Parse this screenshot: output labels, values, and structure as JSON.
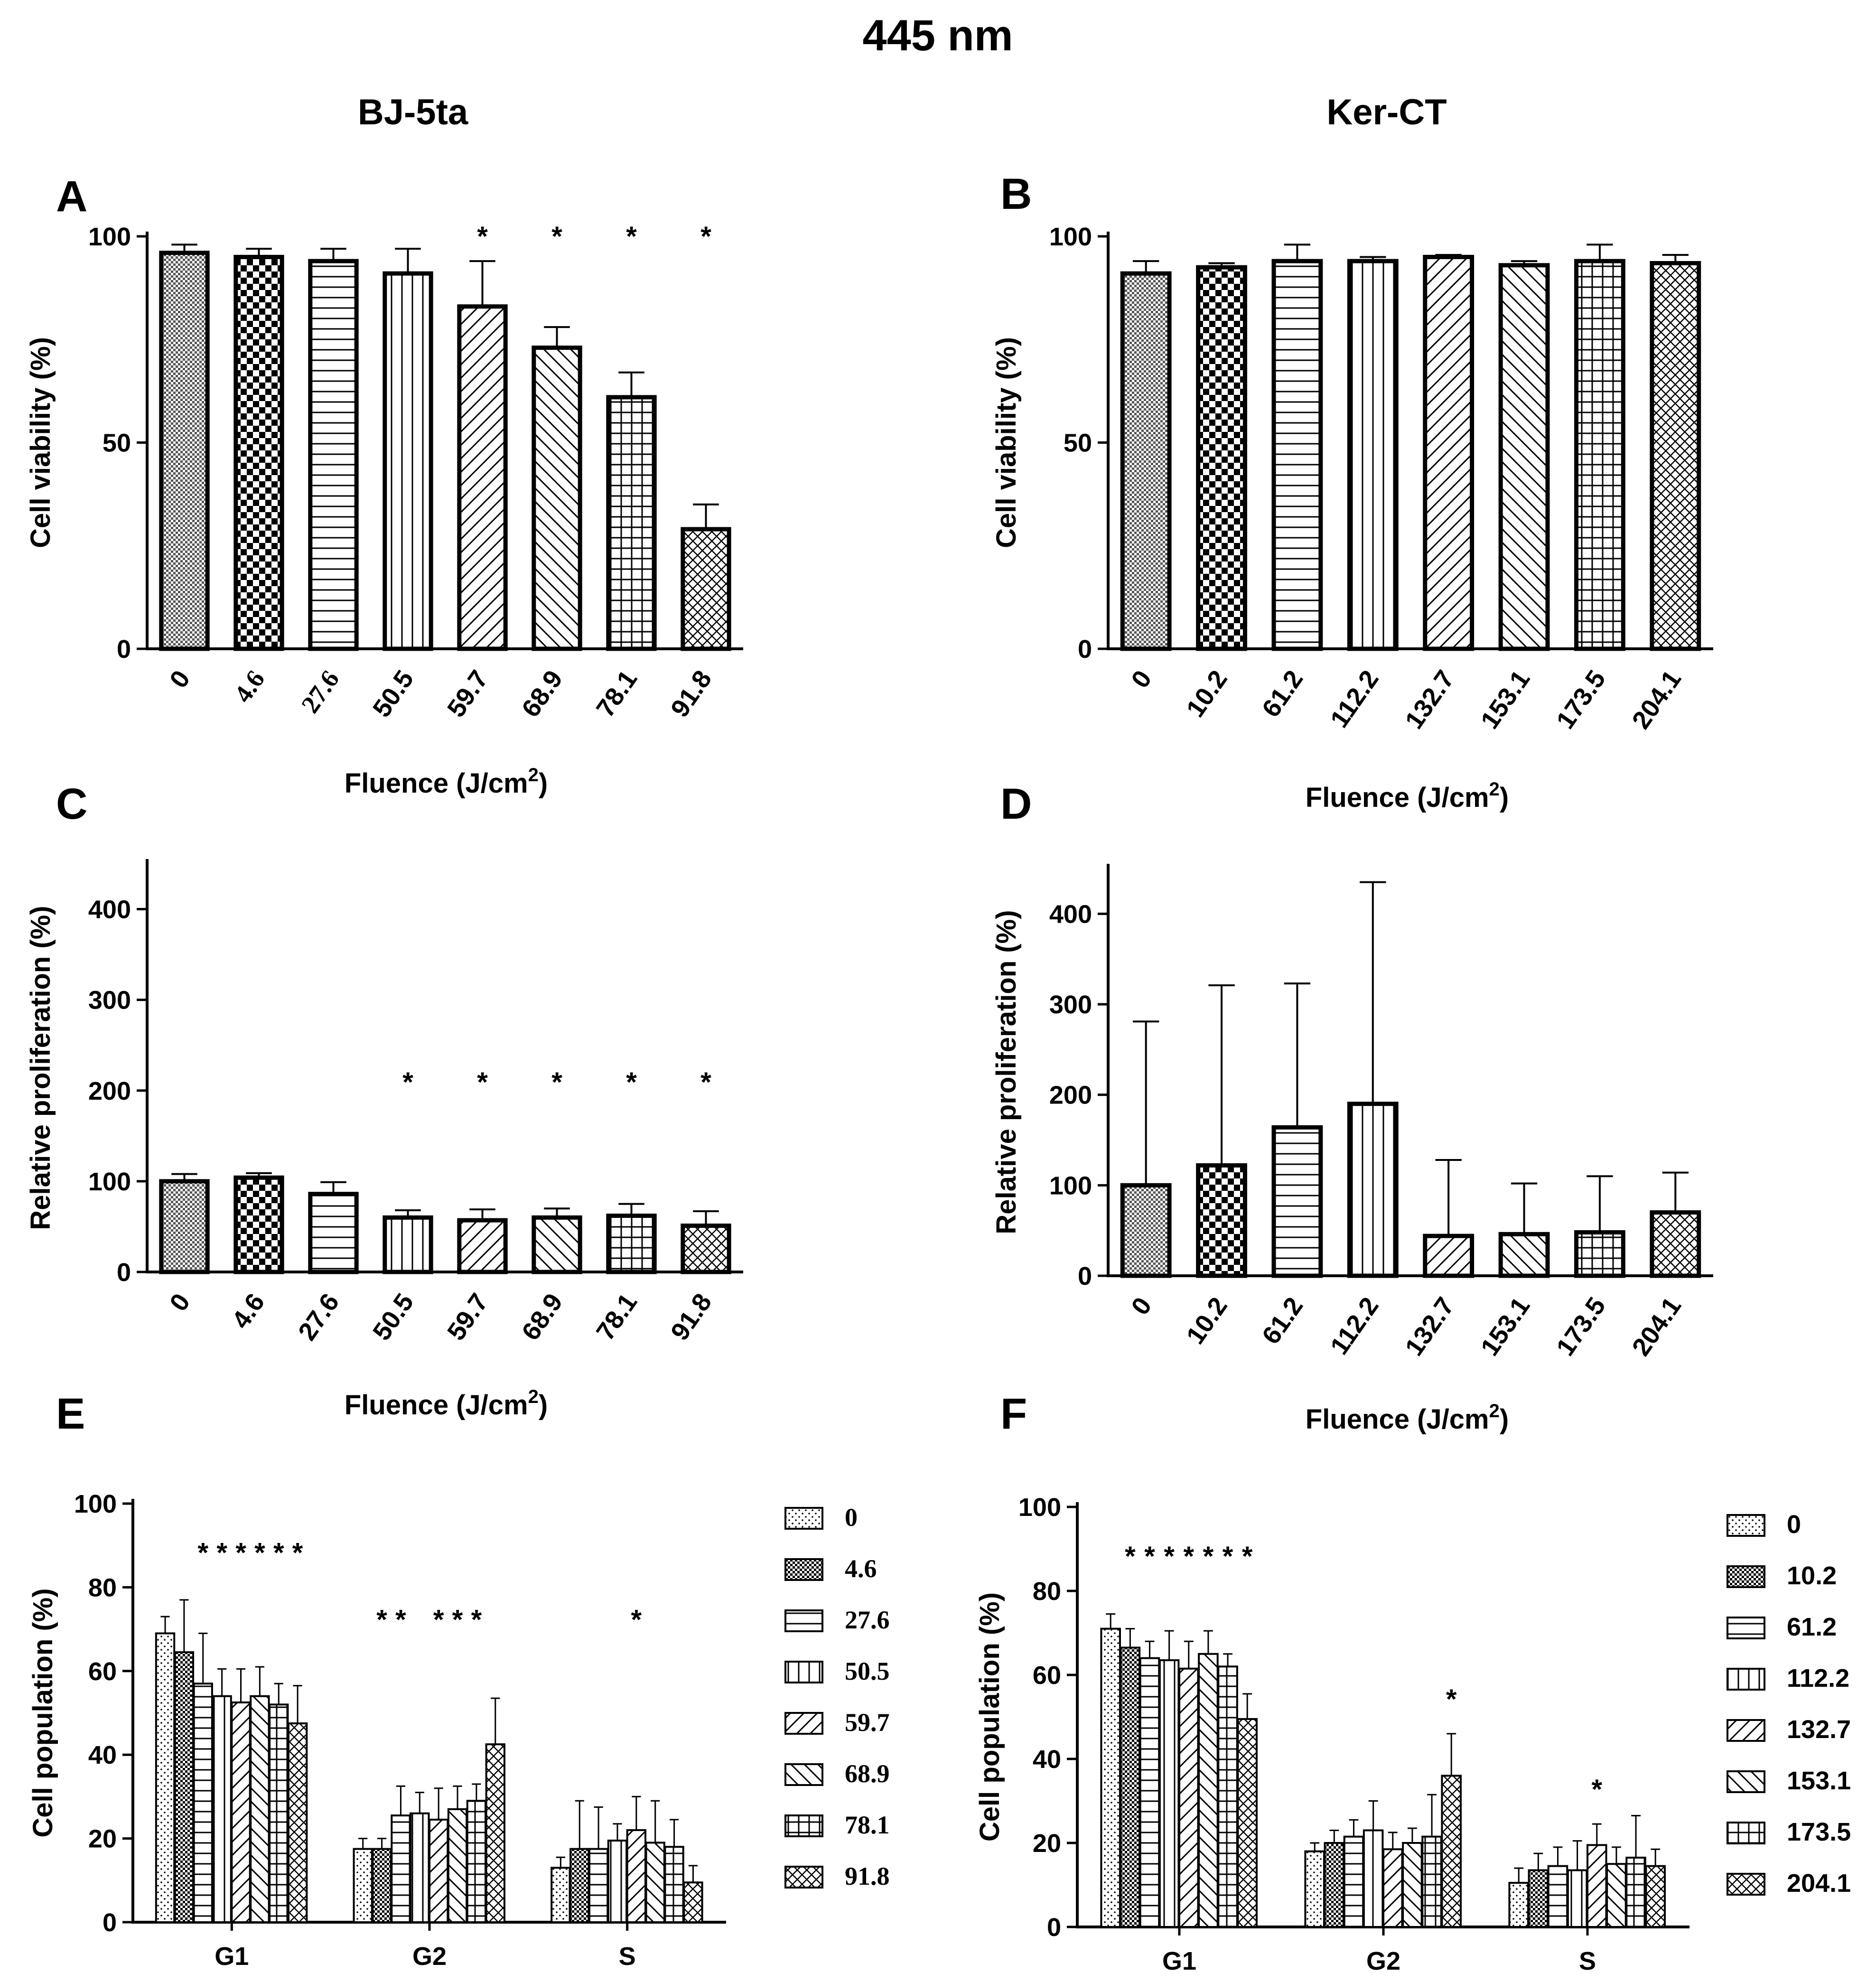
{
  "figure": {
    "title": "445 nm",
    "columns": [
      "BJ-5ta",
      "Ker-CT"
    ]
  },
  "chart_data": [
    {
      "panel": "A",
      "type": "bar",
      "cell_line": "BJ-5ta",
      "categories": [
        "0",
        "4.6",
        "27.6",
        "50.5",
        "59.7",
        "68.9",
        "78.1",
        "91.8"
      ],
      "values": [
        96,
        95,
        94,
        91,
        83,
        73,
        61,
        29
      ],
      "errors": [
        2,
        2,
        3,
        6,
        11,
        5,
        6,
        6
      ],
      "significant": [
        false,
        false,
        false,
        false,
        true,
        true,
        true,
        true
      ],
      "ylabel": "Cell viability (%)",
      "xlabel": "Fluence (J/cm",
      "xlabel_sup": "2",
      "xlabel_end": ")",
      "ylim": [
        0,
        100
      ],
      "yticks": [
        "0",
        "50",
        "100"
      ]
    },
    {
      "panel": "B",
      "type": "bar",
      "cell_line": "Ker-CT",
      "categories": [
        "0",
        "10.2",
        "61.2",
        "112.2",
        "132.7",
        "153.1",
        "173.5",
        "204.1"
      ],
      "values": [
        91,
        92.5,
        94,
        94,
        95,
        93,
        94,
        93.5
      ],
      "errors": [
        3,
        1,
        4,
        1,
        0.5,
        1,
        4,
        2
      ],
      "significant": [
        false,
        false,
        false,
        false,
        false,
        false,
        false,
        false
      ],
      "ylabel": "Cell viability (%)",
      "xlabel": "Fluence (J/cm",
      "xlabel_sup": "2",
      "xlabel_end": ")",
      "ylim": [
        0,
        100
      ],
      "yticks": [
        "0",
        "50",
        "100"
      ]
    },
    {
      "panel": "C",
      "type": "bar",
      "cell_line": "BJ-5ta",
      "categories": [
        "0",
        "4.6",
        "27.6",
        "50.5",
        "59.7",
        "68.9",
        "78.1",
        "91.8"
      ],
      "values": [
        100,
        104,
        86,
        60,
        57,
        60,
        62,
        51
      ],
      "errors": [
        8,
        5,
        13,
        8,
        12,
        10,
        13,
        16
      ],
      "significant": [
        false,
        false,
        false,
        true,
        true,
        true,
        true,
        true
      ],
      "ylabel": "Relative proliferation (%)",
      "xlabel": "Fluence (J/cm",
      "xlabel_sup": "2",
      "xlabel_end": ")",
      "ylim": [
        0,
        450
      ],
      "yticks": [
        "0",
        "100",
        "200",
        "300",
        "400"
      ]
    },
    {
      "panel": "D",
      "type": "bar",
      "cell_line": "Ker-CT",
      "categories": [
        "0",
        "10.2",
        "61.2",
        "112.2",
        "132.7",
        "153.1",
        "173.5",
        "204.1"
      ],
      "values": [
        100,
        122,
        164,
        190,
        44,
        46,
        48,
        70
      ],
      "errors": [
        181,
        199,
        159,
        245,
        84,
        56,
        62,
        44
      ],
      "significant": [
        false,
        false,
        false,
        false,
        false,
        false,
        false,
        false
      ],
      "ylabel": "Relative proliferation (%)",
      "xlabel": "Fluence (J/cm",
      "xlabel_sup": "2",
      "xlabel_end": ")",
      "ylim": [
        0,
        450
      ],
      "yticks": [
        "0",
        "100",
        "200",
        "300",
        "400"
      ]
    },
    {
      "panel": "E",
      "type": "grouped-bar",
      "cell_line": "BJ-5ta",
      "groups": [
        "G1",
        "G2",
        "S"
      ],
      "series": [
        {
          "name": "0",
          "values": [
            69,
            17.5,
            13
          ],
          "errors": [
            4,
            2.5,
            2.5
          ]
        },
        {
          "name": "4.6",
          "values": [
            64.5,
            17.5,
            17.5
          ],
          "errors": [
            12.5,
            2.5,
            11.5
          ]
        },
        {
          "name": "27.6",
          "values": [
            57,
            25.5,
            17.5
          ],
          "errors": [
            12,
            7,
            10
          ]
        },
        {
          "name": "50.5",
          "values": [
            54,
            26,
            19.5
          ],
          "errors": [
            6.5,
            5,
            4
          ]
        },
        {
          "name": "59.7",
          "values": [
            52.5,
            24.5,
            22
          ],
          "errors": [
            8,
            7.5,
            8
          ]
        },
        {
          "name": "68.9",
          "values": [
            54,
            27,
            19
          ],
          "errors": [
            7,
            5.5,
            10
          ]
        },
        {
          "name": "78.1",
          "values": [
            52,
            29,
            18
          ],
          "errors": [
            5,
            4,
            6.5
          ]
        },
        {
          "name": "91.8",
          "values": [
            47.5,
            42.5,
            9.5
          ],
          "errors": [
            9,
            11,
            4
          ]
        }
      ],
      "significant": [
        [
          false,
          false,
          false
        ],
        [
          false,
          true,
          false
        ],
        [
          true,
          true,
          false
        ],
        [
          true,
          false,
          false
        ],
        [
          true,
          true,
          true
        ],
        [
          true,
          true,
          false
        ],
        [
          true,
          true,
          false
        ],
        [
          true,
          false,
          false
        ]
      ],
      "ylabel": "Cell population (%)",
      "ylim": [
        0,
        100
      ],
      "yticks": [
        "0",
        "20",
        "40",
        "60",
        "80",
        "100"
      ],
      "legend": [
        "0",
        "4.6",
        "27.6",
        "50.5",
        "59.7",
        "68.9",
        "78.1",
        "91.8"
      ]
    },
    {
      "panel": "F",
      "type": "grouped-bar",
      "cell_line": "Ker-CT",
      "groups": [
        "G1",
        "G2",
        "S"
      ],
      "series": [
        {
          "name": "0",
          "values": [
            71,
            18,
            10.5
          ],
          "errors": [
            3.5,
            2,
            3.5
          ]
        },
        {
          "name": "10.2",
          "values": [
            66.5,
            20,
            13.5
          ],
          "errors": [
            4.5,
            3,
            4
          ]
        },
        {
          "name": "61.2",
          "values": [
            64,
            21.5,
            14.5
          ],
          "errors": [
            4,
            4,
            4.5
          ]
        },
        {
          "name": "112.2",
          "values": [
            63.5,
            23,
            13.5
          ],
          "errors": [
            7,
            7,
            7
          ]
        },
        {
          "name": "132.7",
          "values": [
            61.5,
            18.5,
            19.5
          ],
          "errors": [
            6.5,
            4,
            5
          ]
        },
        {
          "name": "153.1",
          "values": [
            65,
            20,
            15
          ],
          "errors": [
            5.5,
            3.5,
            4
          ]
        },
        {
          "name": "173.5",
          "values": [
            62,
            21.5,
            16.5
          ],
          "errors": [
            3,
            10,
            10
          ]
        },
        {
          "name": "204.1",
          "values": [
            49.5,
            36,
            14.5
          ],
          "errors": [
            6,
            10,
            4
          ]
        }
      ],
      "significant": [
        [
          false,
          false,
          false
        ],
        [
          true,
          false,
          false
        ],
        [
          true,
          false,
          false
        ],
        [
          true,
          false,
          false
        ],
        [
          true,
          false,
          true
        ],
        [
          true,
          false,
          false
        ],
        [
          true,
          false,
          false
        ],
        [
          true,
          true,
          false
        ]
      ],
      "ylabel": "Cell population (%)",
      "ylim": [
        0,
        100
      ],
      "yticks": [
        "0",
        "20",
        "40",
        "60",
        "80",
        "100"
      ],
      "legend": [
        "0",
        "10.2",
        "61.2",
        "112.2",
        "132.7",
        "153.1",
        "173.5",
        "204.1"
      ]
    }
  ]
}
